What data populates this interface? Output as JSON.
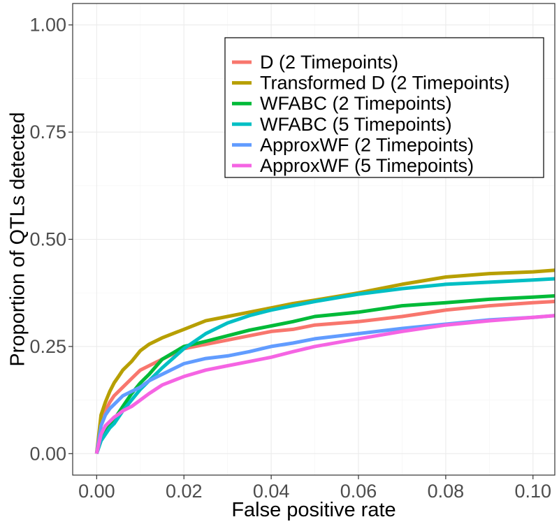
{
  "chart_data": {
    "type": "line",
    "title": "",
    "xlabel": "False positive rate",
    "ylabel": "Proportion of QTLs detected",
    "xlim": [
      -0.0055,
      0.105
    ],
    "ylim": [
      -0.05,
      1.05
    ],
    "x_ticks": [
      0.0,
      0.02,
      0.04,
      0.06,
      0.08,
      0.1
    ],
    "x_tick_labels": [
      "0.00",
      "0.02",
      "0.04",
      "0.06",
      "0.08",
      "0.10"
    ],
    "y_ticks": [
      0.0,
      0.25,
      0.5,
      0.75,
      1.0
    ],
    "y_tick_labels": [
      "0.00",
      "0.25",
      "0.50",
      "0.75",
      "1.00"
    ],
    "grid": true,
    "legend_position": "top-right",
    "series": [
      {
        "name": "D (2 Timepoints)",
        "color": "#F8766D",
        "x": [
          0,
          0.001,
          0.002,
          0.003,
          0.004,
          0.005,
          0.006,
          0.008,
          0.01,
          0.012,
          0.015,
          0.02,
          0.025,
          0.03,
          0.035,
          0.04,
          0.045,
          0.05,
          0.06,
          0.07,
          0.08,
          0.09,
          0.1,
          0.105
        ],
        "y": [
          0,
          0.07,
          0.1,
          0.12,
          0.135,
          0.145,
          0.155,
          0.175,
          0.195,
          0.205,
          0.22,
          0.245,
          0.255,
          0.265,
          0.275,
          0.285,
          0.29,
          0.3,
          0.308,
          0.32,
          0.335,
          0.345,
          0.352,
          0.355
        ]
      },
      {
        "name": "Transformed D (2 Timepoints)",
        "color": "#B79F00",
        "x": [
          0,
          0.001,
          0.002,
          0.003,
          0.004,
          0.005,
          0.006,
          0.008,
          0.01,
          0.012,
          0.015,
          0.02,
          0.025,
          0.03,
          0.035,
          0.04,
          0.045,
          0.05,
          0.06,
          0.07,
          0.08,
          0.09,
          0.1,
          0.105
        ],
        "y": [
          0,
          0.09,
          0.12,
          0.145,
          0.165,
          0.18,
          0.195,
          0.215,
          0.24,
          0.255,
          0.27,
          0.29,
          0.31,
          0.32,
          0.33,
          0.34,
          0.35,
          0.358,
          0.375,
          0.395,
          0.412,
          0.42,
          0.424,
          0.428
        ]
      },
      {
        "name": "WFABC (2 Timepoints)",
        "color": "#00BA38",
        "x": [
          0,
          0.001,
          0.002,
          0.003,
          0.004,
          0.005,
          0.006,
          0.008,
          0.01,
          0.012,
          0.015,
          0.02,
          0.025,
          0.03,
          0.035,
          0.04,
          0.045,
          0.05,
          0.06,
          0.07,
          0.08,
          0.09,
          0.1,
          0.105
        ],
        "y": [
          0,
          0.035,
          0.05,
          0.065,
          0.08,
          0.095,
          0.11,
          0.14,
          0.165,
          0.185,
          0.22,
          0.25,
          0.262,
          0.275,
          0.288,
          0.298,
          0.308,
          0.32,
          0.33,
          0.345,
          0.352,
          0.36,
          0.365,
          0.368
        ]
      },
      {
        "name": "WFABC (5 Timepoints)",
        "color": "#00BFC4",
        "x": [
          0,
          0.001,
          0.002,
          0.003,
          0.004,
          0.005,
          0.006,
          0.008,
          0.01,
          0.012,
          0.015,
          0.02,
          0.025,
          0.03,
          0.035,
          0.04,
          0.045,
          0.05,
          0.06,
          0.07,
          0.08,
          0.09,
          0.1,
          0.105
        ],
        "y": [
          0,
          0.03,
          0.045,
          0.06,
          0.07,
          0.085,
          0.1,
          0.125,
          0.15,
          0.17,
          0.2,
          0.245,
          0.28,
          0.305,
          0.322,
          0.335,
          0.345,
          0.355,
          0.372,
          0.385,
          0.395,
          0.4,
          0.405,
          0.408
        ]
      },
      {
        "name": "ApproxWF (2 Timepoints)",
        "color": "#619CFF",
        "x": [
          0,
          0.001,
          0.002,
          0.003,
          0.004,
          0.005,
          0.006,
          0.008,
          0.01,
          0.012,
          0.015,
          0.02,
          0.025,
          0.03,
          0.035,
          0.04,
          0.045,
          0.05,
          0.06,
          0.07,
          0.08,
          0.09,
          0.1,
          0.105
        ],
        "y": [
          0,
          0.065,
          0.09,
          0.105,
          0.115,
          0.125,
          0.135,
          0.145,
          0.155,
          0.17,
          0.185,
          0.21,
          0.222,
          0.228,
          0.238,
          0.25,
          0.258,
          0.268,
          0.28,
          0.292,
          0.302,
          0.312,
          0.318,
          0.322
        ]
      },
      {
        "name": "ApproxWF (5 Timepoints)",
        "color": "#F564E3",
        "x": [
          0,
          0.001,
          0.002,
          0.003,
          0.004,
          0.005,
          0.006,
          0.008,
          0.01,
          0.012,
          0.015,
          0.02,
          0.025,
          0.03,
          0.035,
          0.04,
          0.045,
          0.05,
          0.06,
          0.07,
          0.08,
          0.09,
          0.1,
          0.105
        ],
        "y": [
          0,
          0.045,
          0.065,
          0.075,
          0.085,
          0.092,
          0.1,
          0.11,
          0.125,
          0.14,
          0.16,
          0.18,
          0.195,
          0.205,
          0.215,
          0.225,
          0.238,
          0.25,
          0.268,
          0.285,
          0.3,
          0.31,
          0.318,
          0.322
        ]
      }
    ]
  }
}
